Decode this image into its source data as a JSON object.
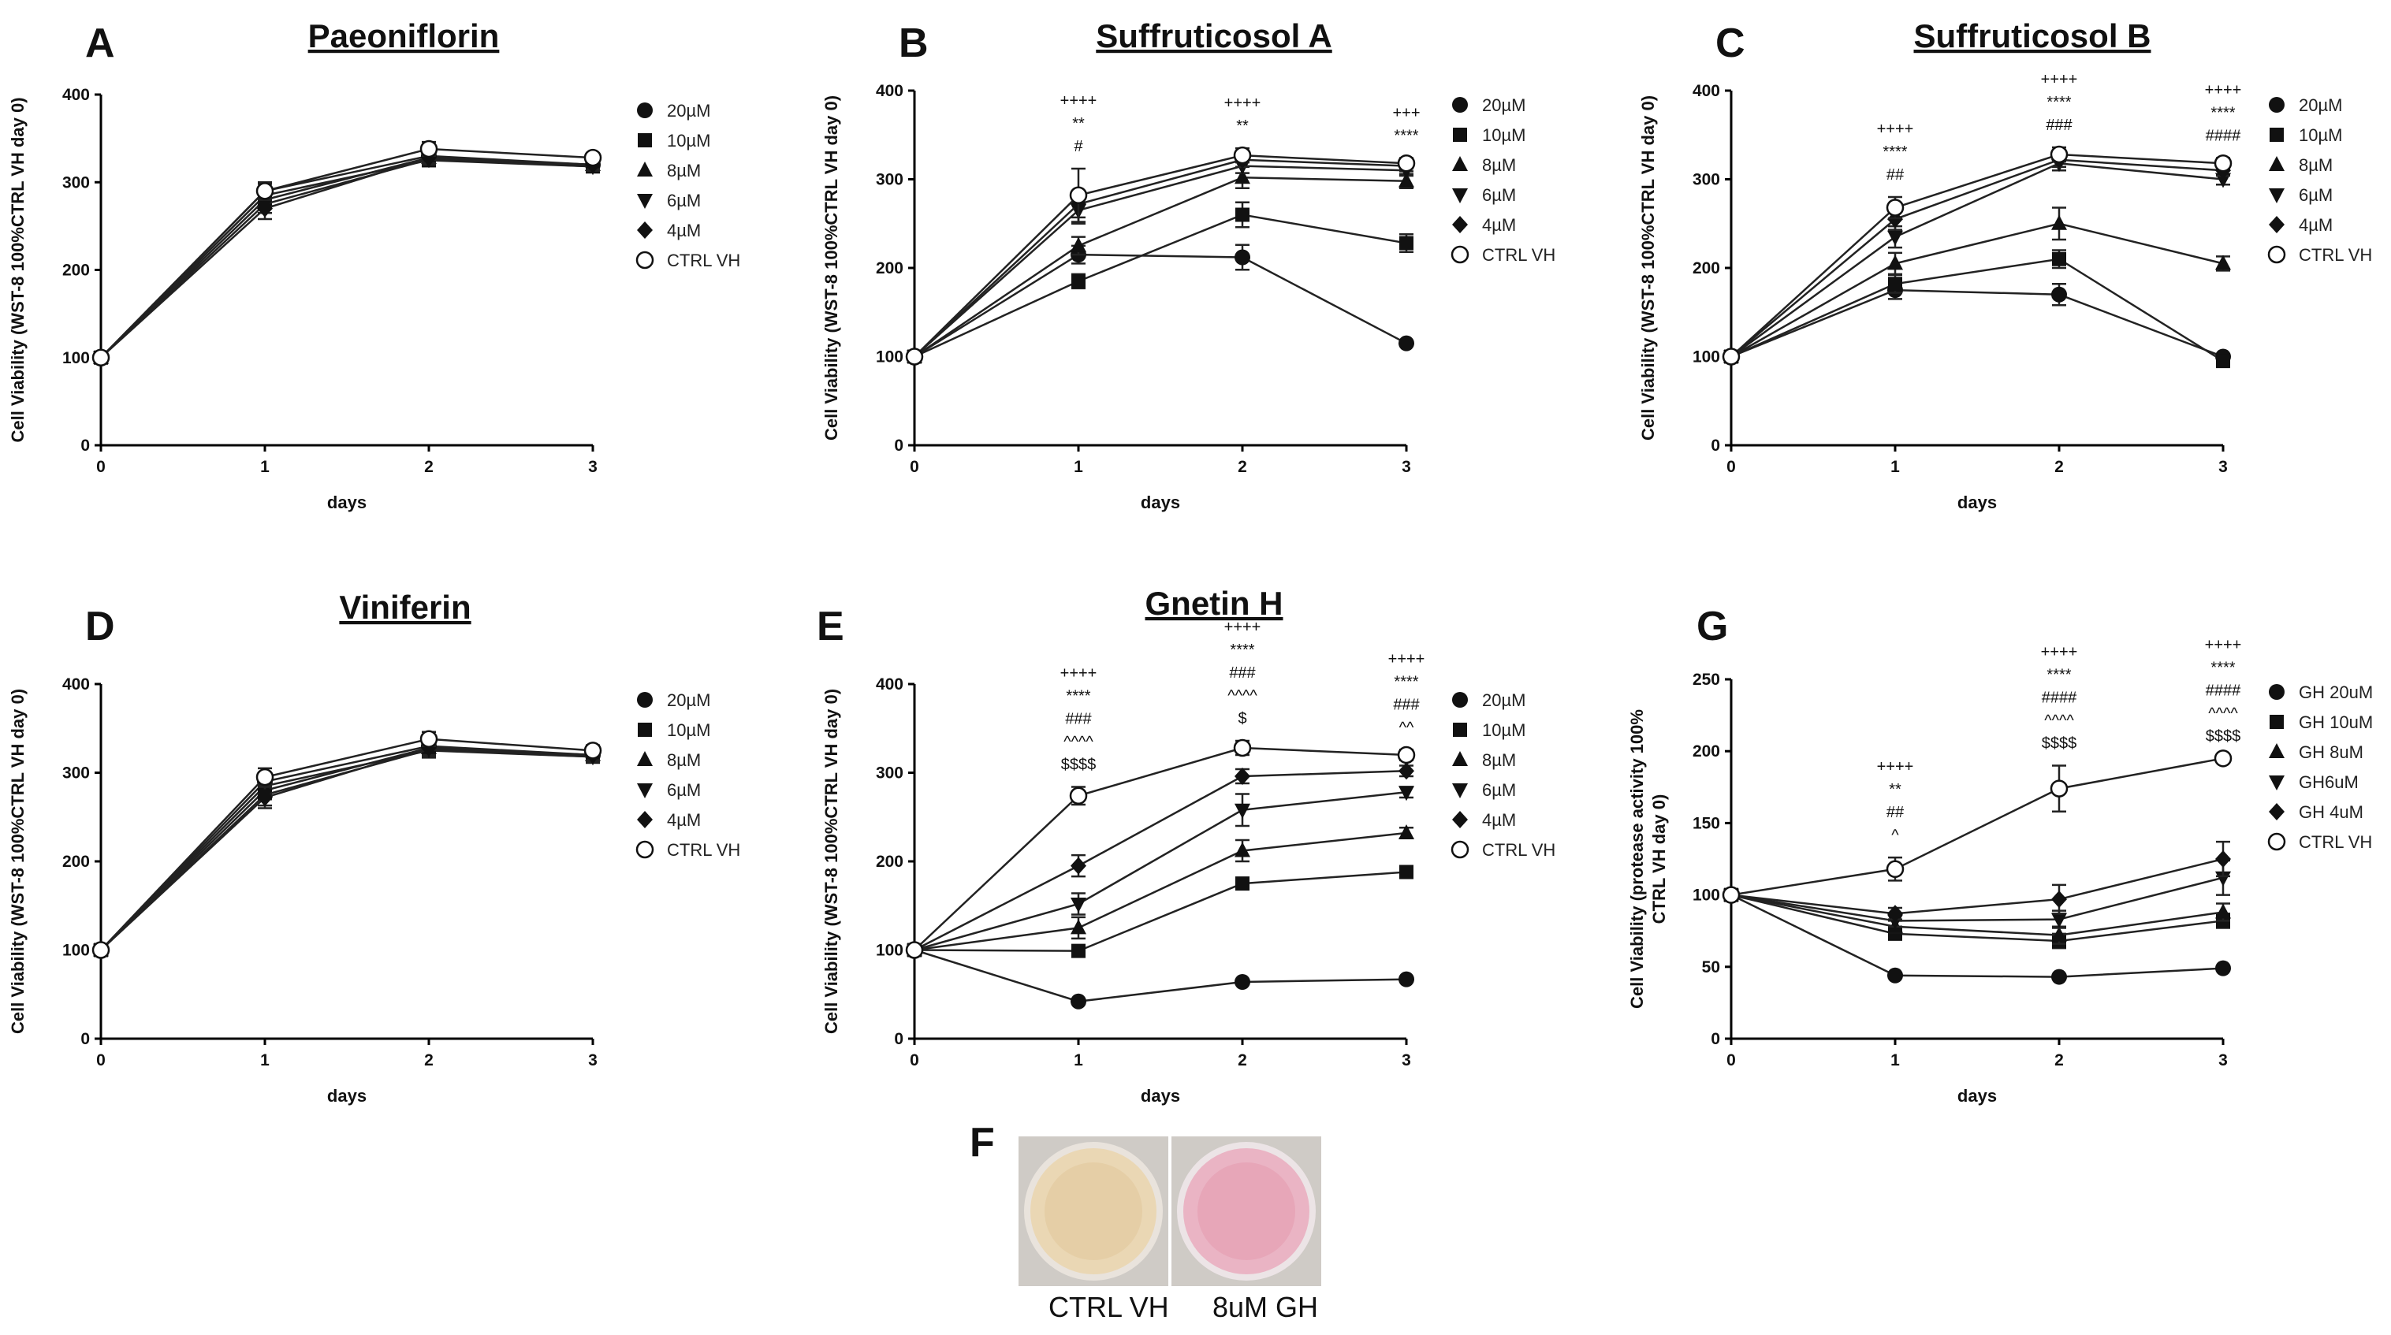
{
  "figure": {
    "colors": {
      "ink": "#111111",
      "line": "#222222",
      "background": "#ffffff",
      "well_ctrl": "#ead7b4",
      "well_gh": "#eab4c4"
    },
    "photo_panel": {
      "letter": "F",
      "captions": [
        "CTRL VH",
        "8uM GH"
      ]
    }
  },
  "chart_data": [
    {
      "id": "A",
      "type": "line",
      "title": "Paeoniflorin",
      "xlabel": "days",
      "ylabel": "Cell Viability (WST-8 100%CTRL VH day 0)",
      "x": [
        0,
        1,
        2,
        3
      ],
      "xticks": [
        "0",
        "1",
        "2",
        "3"
      ],
      "ylim": [
        0,
        400
      ],
      "yticks": [
        "0",
        "100",
        "200",
        "300",
        "400"
      ],
      "series": [
        {
          "name": "20µM",
          "marker": "circle",
          "values": [
            100,
            290,
            330,
            320
          ],
          "err": [
            0,
            8,
            6,
            5
          ]
        },
        {
          "name": "10µM",
          "marker": "square",
          "values": [
            100,
            285,
            325,
            318
          ],
          "err": [
            0,
            10,
            6,
            5
          ]
        },
        {
          "name": "8µM",
          "marker": "triangle-up",
          "values": [
            100,
            280,
            328,
            320
          ],
          "err": [
            0,
            8,
            6,
            5
          ]
        },
        {
          "name": "6µM",
          "marker": "triangle-down",
          "values": [
            100,
            275,
            326,
            318
          ],
          "err": [
            0,
            10,
            6,
            5
          ]
        },
        {
          "name": "4µM",
          "marker": "diamond",
          "values": [
            100,
            270,
            328,
            320
          ],
          "err": [
            0,
            12,
            6,
            5
          ]
        },
        {
          "name": "CTRL VH",
          "marker": "circle-open",
          "values": [
            100,
            290,
            338,
            328
          ],
          "err": [
            0,
            10,
            8,
            5
          ]
        }
      ],
      "annotations": []
    },
    {
      "id": "B",
      "type": "line",
      "title": "Suffruticosol A",
      "xlabel": "days",
      "ylabel": "Cell Viability (WST-8 100%CTRL VH day 0)",
      "x": [
        0,
        1,
        2,
        3
      ],
      "xticks": [
        "0",
        "1",
        "2",
        "3"
      ],
      "ylim": [
        0,
        400
      ],
      "yticks": [
        "0",
        "100",
        "200",
        "300",
        "400"
      ],
      "series": [
        {
          "name": "20µM",
          "marker": "circle",
          "values": [
            100,
            215,
            212,
            115
          ],
          "err": [
            0,
            10,
            14,
            0
          ]
        },
        {
          "name": "10µM",
          "marker": "square",
          "values": [
            100,
            185,
            260,
            228
          ],
          "err": [
            0,
            8,
            14,
            10
          ]
        },
        {
          "name": "8µM",
          "marker": "triangle-up",
          "values": [
            100,
            225,
            302,
            298
          ],
          "err": [
            0,
            10,
            12,
            8
          ]
        },
        {
          "name": "6µM",
          "marker": "triangle-down",
          "values": [
            100,
            265,
            315,
            310
          ],
          "err": [
            0,
            15,
            8,
            6
          ]
        },
        {
          "name": "4µM",
          "marker": "diamond",
          "values": [
            100,
            272,
            322,
            315
          ],
          "err": [
            0,
            15,
            8,
            6
          ]
        },
        {
          "name": "CTRL VH",
          "marker": "circle-open",
          "values": [
            100,
            282,
            327,
            318
          ],
          "err": [
            0,
            30,
            8,
            6
          ]
        }
      ],
      "annotations": [
        {
          "x": 1,
          "lines": [
            "++++",
            "**",
            "#"
          ]
        },
        {
          "x": 2,
          "lines": [
            "++++",
            "**"
          ]
        },
        {
          "x": 3,
          "lines": [
            "+++",
            "****"
          ]
        }
      ]
    },
    {
      "id": "C",
      "type": "line",
      "title": "Suffruticosol B",
      "xlabel": "days",
      "ylabel": "Cell Viability (WST-8 100%CTRL VH day 0)",
      "x": [
        0,
        1,
        2,
        3
      ],
      "xticks": [
        "0",
        "1",
        "2",
        "3"
      ],
      "ylim": [
        0,
        400
      ],
      "yticks": [
        "0",
        "100",
        "200",
        "300",
        "400"
      ],
      "series": [
        {
          "name": "20µM",
          "marker": "circle",
          "values": [
            100,
            175,
            170,
            100
          ],
          "err": [
            0,
            10,
            12,
            0
          ]
        },
        {
          "name": "10µM",
          "marker": "square",
          "values": [
            100,
            182,
            210,
            95
          ],
          "err": [
            0,
            10,
            10,
            0
          ]
        },
        {
          "name": "8µM",
          "marker": "triangle-up",
          "values": [
            100,
            205,
            250,
            205
          ],
          "err": [
            0,
            12,
            18,
            8
          ]
        },
        {
          "name": "6µM",
          "marker": "triangle-down",
          "values": [
            100,
            235,
            318,
            300
          ],
          "err": [
            0,
            12,
            8,
            6
          ]
        },
        {
          "name": "4µM",
          "marker": "diamond",
          "values": [
            100,
            255,
            322,
            310
          ],
          "err": [
            0,
            12,
            8,
            6
          ]
        },
        {
          "name": "CTRL VH",
          "marker": "circle-open",
          "values": [
            100,
            268,
            328,
            318
          ],
          "err": [
            0,
            12,
            8,
            6
          ]
        }
      ],
      "annotations": [
        {
          "x": 1,
          "lines": [
            "++++",
            "****",
            "##"
          ]
        },
        {
          "x": 2,
          "lines": [
            "++++",
            "****",
            "###"
          ]
        },
        {
          "x": 3,
          "lines": [
            "++++",
            "****",
            "####"
          ]
        }
      ]
    },
    {
      "id": "D",
      "type": "line",
      "title": "Viniferin",
      "xlabel": "days",
      "ylabel": "Cell Viability (WST-8 100%CTRL VH day 0)",
      "x": [
        0,
        1,
        2,
        3
      ],
      "xticks": [
        "0",
        "1",
        "2",
        "3"
      ],
      "ylim": [
        0,
        400
      ],
      "yticks": [
        "0",
        "100",
        "200",
        "300",
        "400"
      ],
      "series": [
        {
          "name": "20µM",
          "marker": "circle",
          "values": [
            100,
            290,
            330,
            320
          ],
          "err": [
            0,
            10,
            8,
            6
          ]
        },
        {
          "name": "10µM",
          "marker": "square",
          "values": [
            100,
            285,
            325,
            318
          ],
          "err": [
            0,
            10,
            8,
            6
          ]
        },
        {
          "name": "8µM",
          "marker": "triangle-up",
          "values": [
            100,
            280,
            328,
            320
          ],
          "err": [
            0,
            10,
            8,
            6
          ]
        },
        {
          "name": "6µM",
          "marker": "triangle-down",
          "values": [
            100,
            275,
            326,
            318
          ],
          "err": [
            0,
            12,
            8,
            6
          ]
        },
        {
          "name": "4µM",
          "marker": "diamond",
          "values": [
            100,
            272,
            328,
            320
          ],
          "err": [
            0,
            12,
            8,
            6
          ]
        },
        {
          "name": "CTRL VH",
          "marker": "circle-open",
          "values": [
            100,
            295,
            338,
            325
          ],
          "err": [
            0,
            10,
            8,
            6
          ]
        }
      ],
      "annotations": []
    },
    {
      "id": "E",
      "type": "line",
      "title": "Gnetin H",
      "xlabel": "days",
      "ylabel": "Cell Viability (WST-8 100%CTRL VH day 0)",
      "x": [
        0,
        1,
        2,
        3
      ],
      "xticks": [
        "0",
        "1",
        "2",
        "3"
      ],
      "ylim": [
        0,
        400
      ],
      "yticks": [
        "0",
        "100",
        "200",
        "300",
        "400"
      ],
      "series": [
        {
          "name": "20µM",
          "marker": "circle",
          "values": [
            100,
            42,
            64,
            67
          ],
          "err": [
            0,
            0,
            0,
            0
          ]
        },
        {
          "name": "10µM",
          "marker": "square",
          "values": [
            100,
            99,
            175,
            188
          ],
          "err": [
            0,
            0,
            6,
            6
          ]
        },
        {
          "name": "8µM",
          "marker": "triangle-up",
          "values": [
            100,
            125,
            212,
            232
          ],
          "err": [
            0,
            12,
            12,
            6
          ]
        },
        {
          "name": "6µM",
          "marker": "triangle-down",
          "values": [
            100,
            152,
            258,
            278
          ],
          "err": [
            0,
            12,
            18,
            6
          ]
        },
        {
          "name": "4µM",
          "marker": "diamond",
          "values": [
            100,
            195,
            296,
            302
          ],
          "err": [
            0,
            12,
            8,
            6
          ]
        },
        {
          "name": "CTRL VH",
          "marker": "circle-open",
          "values": [
            100,
            274,
            328,
            320
          ],
          "err": [
            0,
            10,
            8,
            6
          ]
        }
      ],
      "annotations": [
        {
          "x": 1,
          "lines": [
            "++++",
            "****",
            "###",
            "^^^^",
            "$$$$"
          ]
        },
        {
          "x": 2,
          "lines": [
            "++++",
            "****",
            "###",
            "^^^^",
            "$"
          ]
        },
        {
          "x": 3,
          "lines": [
            "++++",
            "****",
            "###",
            "^^"
          ]
        }
      ]
    },
    {
      "id": "G",
      "type": "line",
      "title": "",
      "xlabel": "days",
      "ylabel": "Cell Viability (protease activity 100% CTRL VH day 0)",
      "ylabel_lines": [
        "Cell Viability (protease activity 100%",
        "CTRL VH day 0)"
      ],
      "x": [
        0,
        1,
        2,
        3
      ],
      "xticks": [
        "0",
        "1",
        "2",
        "3"
      ],
      "ylim": [
        0,
        250
      ],
      "yticks": [
        "0",
        "50",
        "100",
        "150",
        "200",
        "250"
      ],
      "series": [
        {
          "name": "GH 20uM",
          "marker": "circle",
          "values": [
            100,
            44,
            43,
            49
          ],
          "err": [
            0,
            0,
            0,
            0
          ]
        },
        {
          "name": "GH 10uM",
          "marker": "square",
          "values": [
            100,
            73,
            68,
            82
          ],
          "err": [
            0,
            4,
            5,
            5
          ]
        },
        {
          "name": "GH 8uM",
          "marker": "triangle-up",
          "values": [
            100,
            78,
            72,
            88
          ],
          "err": [
            0,
            4,
            6,
            6
          ]
        },
        {
          "name": "GH6uM",
          "marker": "triangle-down",
          "values": [
            100,
            82,
            83,
            112
          ],
          "err": [
            0,
            4,
            6,
            12
          ]
        },
        {
          "name": "GH 4uM",
          "marker": "diamond",
          "values": [
            100,
            87,
            97,
            125
          ],
          "err": [
            0,
            4,
            10,
            12
          ]
        },
        {
          "name": "CTRL VH",
          "marker": "circle-open",
          "values": [
            100,
            118,
            174,
            195
          ],
          "err": [
            0,
            8,
            16,
            0
          ]
        }
      ],
      "annotations": [
        {
          "x": 1,
          "lines": [
            "++++",
            "**",
            "##",
            "^"
          ]
        },
        {
          "x": 2,
          "lines": [
            "++++",
            "****",
            "####",
            "^^^^",
            "$$$$"
          ]
        },
        {
          "x": 3,
          "lines": [
            "++++",
            "****",
            "####",
            "^^^^",
            "$$$$"
          ]
        }
      ]
    }
  ]
}
